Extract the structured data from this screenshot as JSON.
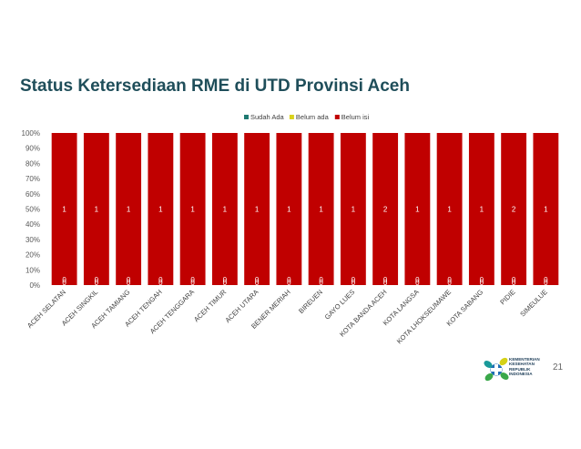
{
  "slide": {
    "title": "Status Ketersediaan RME di UTD Provinsi Aceh",
    "page_number": "21",
    "logo": {
      "lines": [
        "KEMENTERIAN",
        "KESEHATAN",
        "REPUBLIK",
        "INDONESIA"
      ],
      "colors": {
        "blue": "#1f6fb5",
        "green": "#3aa84a",
        "yellow": "#d5d116",
        "teal": "#1a9a9a"
      }
    }
  },
  "chart_data": {
    "type": "bar",
    "stacked": true,
    "percent_stacked": true,
    "title": "",
    "xlabel": "",
    "ylabel": "",
    "ylim": [
      0,
      100
    ],
    "yticks": [
      "0%",
      "10%",
      "20%",
      "30%",
      "40%",
      "50%",
      "60%",
      "70%",
      "80%",
      "90%",
      "100%"
    ],
    "legend_position": "top",
    "categories": [
      "ACEH SELATAN",
      "ACEH SINGKIL",
      "ACEH TAMIANG",
      "ACEH TENGAH",
      "ACEH TENGGARA",
      "ACEH TIMUR",
      "ACEH UTARA",
      "BENER MERIAH",
      "BIREUEN",
      "GAYO LUES",
      "KOTA BANDA ACEH",
      "KOTA LANGSA",
      "KOTA LHOKSEUMAWE",
      "KOTA SABANG",
      "PIDIE",
      "SIMEULUE"
    ],
    "series": [
      {
        "name": "Sudah Ada",
        "color": "#1f7a72",
        "values": [
          0,
          0,
          0,
          0,
          0,
          0,
          0,
          0,
          0,
          0,
          0,
          0,
          0,
          0,
          0,
          0
        ]
      },
      {
        "name": "Belum ada",
        "color": "#d9d21c",
        "values": [
          0,
          0,
          0,
          0,
          0,
          0,
          0,
          0,
          0,
          0,
          0,
          0,
          0,
          0,
          0,
          0
        ]
      },
      {
        "name": "Belum isi",
        "color": "#c00000",
        "values": [
          1,
          1,
          1,
          1,
          1,
          1,
          1,
          1,
          1,
          1,
          2,
          1,
          1,
          1,
          2,
          1
        ]
      }
    ],
    "grid": false,
    "data_labels": true
  }
}
